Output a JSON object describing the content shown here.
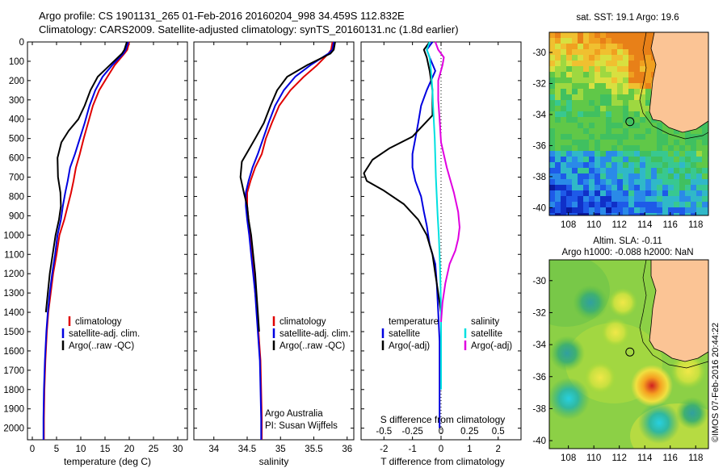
{
  "header": {
    "title_line1": "Argo profile: CS 1901131_265 01-Feb-2016 20160204_998 34.459S 112.832E",
    "title_line2": "Climatology: CARS2009. Satellite-adjusted climatology: synTS_20160131.nc (1.8d earlier)"
  },
  "depth_axis": {
    "ticks": [
      0,
      100,
      200,
      300,
      400,
      500,
      600,
      700,
      800,
      900,
      1000,
      1100,
      1200,
      1300,
      1400,
      1500,
      1600,
      1700,
      1800,
      1900,
      2000
    ],
    "range": [
      0,
      2060
    ]
  },
  "colors": {
    "climatology": "#e00000",
    "satellite": "#0000e0",
    "argo": "#000000",
    "salinity_satellite": "#00e0e0",
    "salinity_argo": "#e000e0",
    "land": "#fbc495"
  },
  "chart_data": [
    {
      "type": "line",
      "name": "temperature-panel",
      "xlabel": "temperature (deg C)",
      "xlim": [
        -1,
        32
      ],
      "xticks": [
        0,
        5,
        10,
        15,
        20,
        25,
        30
      ],
      "legend": [
        "climatology",
        "satellite-adj. clim.",
        "Argo(..raw -QC)"
      ],
      "legend_position": "lower-middle",
      "series": [
        {
          "name": "climatology",
          "color": "#e00000",
          "x": [
            20.0,
            19.6,
            19.0,
            17.0,
            15.5,
            13.8,
            12.5,
            11.5,
            10.6,
            9.8,
            9.0,
            8.5,
            8.0,
            7.3,
            6.6,
            5.6,
            5.0,
            4.3,
            3.8,
            3.3,
            3.0,
            2.7,
            2.5,
            2.4,
            2.4
          ],
          "y": [
            0,
            40,
            60,
            120,
            180,
            250,
            330,
            420,
            500,
            580,
            650,
            720,
            780,
            850,
            920,
            1000,
            1100,
            1200,
            1300,
            1400,
            1500,
            1650,
            1800,
            1950,
            2060
          ]
        },
        {
          "name": "satellite-adj. clim.",
          "color": "#0000e0",
          "x": [
            19.8,
            19.3,
            18.8,
            16.5,
            14.5,
            13.0,
            11.8,
            10.8,
            9.8,
            8.8,
            7.8,
            7.3,
            6.8,
            6.3,
            5.9,
            5.2,
            4.7,
            4.1,
            3.6,
            3.2,
            2.9,
            2.6,
            2.4,
            2.3,
            2.3
          ],
          "y": [
            0,
            40,
            60,
            120,
            180,
            250,
            330,
            420,
            500,
            580,
            650,
            720,
            780,
            850,
            920,
            1000,
            1100,
            1200,
            1300,
            1400,
            1500,
            1650,
            1800,
            1950,
            2060
          ]
        },
        {
          "name": "Argo(..raw -QC)",
          "color": "#000000",
          "x": [
            19.5,
            19.0,
            18.5,
            16.0,
            13.5,
            12.0,
            10.8,
            9.5,
            7.5,
            6.0,
            5.2,
            5.3,
            5.8,
            5.9,
            5.5,
            4.8,
            4.2,
            3.6,
            3.2,
            2.8
          ],
          "y": [
            0,
            40,
            60,
            120,
            180,
            250,
            330,
            400,
            460,
            520,
            600,
            700,
            780,
            850,
            920,
            1000,
            1100,
            1200,
            1300,
            1400
          ]
        }
      ]
    },
    {
      "type": "line",
      "name": "salinity-panel",
      "xlabel": "salinity",
      "xlim": [
        33.7,
        36.1
      ],
      "xticks": [
        34,
        34.5,
        35,
        35.5,
        36
      ],
      "legend": [
        "climatology",
        "satellite-adj. clim.",
        "Argo(..raw -QC)"
      ],
      "legend_position": "lower-middle",
      "annotation": [
        "Argo Australia",
        "PI: Susan Wijffels"
      ],
      "series": [
        {
          "name": "climatology",
          "color": "#e00000",
          "x": [
            35.78,
            35.76,
            35.72,
            35.55,
            35.35,
            35.15,
            34.98,
            34.87,
            34.78,
            34.72,
            34.62,
            34.55,
            34.5,
            34.5,
            34.52,
            34.55,
            34.58,
            34.6,
            34.62,
            34.65,
            34.67,
            34.7,
            34.71,
            34.72,
            34.72
          ],
          "y": [
            0,
            40,
            60,
            120,
            180,
            250,
            330,
            420,
            500,
            580,
            650,
            720,
            780,
            850,
            920,
            1000,
            1100,
            1200,
            1300,
            1400,
            1500,
            1650,
            1800,
            1950,
            2060
          ]
        },
        {
          "name": "satellite-adj. clim.",
          "color": "#0000e0",
          "x": [
            35.8,
            35.78,
            35.72,
            35.45,
            35.22,
            35.05,
            34.92,
            34.82,
            34.74,
            34.66,
            34.58,
            34.52,
            34.48,
            34.48,
            34.5,
            34.53,
            34.56,
            34.59,
            34.62,
            34.64,
            34.66,
            34.69,
            34.7,
            34.71,
            34.71
          ],
          "y": [
            0,
            40,
            60,
            120,
            180,
            250,
            330,
            420,
            500,
            580,
            650,
            720,
            780,
            850,
            920,
            1000,
            1100,
            1200,
            1300,
            1400,
            1500,
            1650,
            1800,
            1950,
            2060
          ]
        },
        {
          "name": "Argo(..raw -QC)",
          "color": "#000000",
          "x": [
            35.82,
            35.8,
            35.75,
            35.4,
            35.1,
            34.95,
            34.85,
            34.75,
            34.62,
            34.52,
            34.42,
            34.4,
            34.45,
            34.5,
            34.52,
            34.56,
            34.59,
            34.62,
            34.64,
            34.66,
            34.68
          ],
          "y": [
            0,
            40,
            60,
            120,
            180,
            250,
            330,
            420,
            500,
            560,
            620,
            700,
            780,
            850,
            920,
            1000,
            1100,
            1200,
            1300,
            1400,
            1500
          ]
        }
      ]
    },
    {
      "type": "line",
      "name": "difference-panel",
      "xlabel": "T difference from climatology",
      "xlabel_top": "S difference from climatology",
      "xlim": [
        -2.8,
        2.8
      ],
      "xticks_T": [
        -2,
        -1,
        0,
        1,
        2
      ],
      "xticks_S": [
        -0.5,
        -0.25,
        0,
        0.25,
        0.5
      ],
      "xtick_labels_S": [
        "-0.5",
        "-0.25",
        "0",
        "0.25",
        "0.5"
      ],
      "legend_temperature_header": "temperature",
      "legend_salinity_header": "salinity",
      "legend": [
        "satellite",
        "Argo(-adj)",
        "satellite",
        "Argo(-adj)"
      ],
      "series": [
        {
          "name": "satellite",
          "color": "#0000e0",
          "x": [
            -0.3,
            -0.5,
            -0.4,
            -0.2,
            -0.5,
            -0.7,
            -0.8,
            -0.9,
            -1.0,
            -1.0,
            -0.9,
            -0.7,
            -0.6,
            -0.5,
            -0.4,
            -0.2,
            -0.15,
            -0.1,
            -0.05,
            -0.05,
            -0.05,
            -0.05
          ],
          "y": [
            0,
            40,
            80,
            150,
            250,
            330,
            420,
            500,
            580,
            650,
            720,
            800,
            880,
            950,
            1050,
            1150,
            1250,
            1400,
            1550,
            1700,
            1850,
            2000
          ]
        },
        {
          "name": "Argo(-adj)",
          "color": "#000000",
          "x": [
            -0.4,
            -0.6,
            -0.5,
            -0.4,
            -0.3,
            -0.3,
            -1.0,
            -1.8,
            -2.4,
            -2.7,
            -2.6,
            -2.0,
            -1.3,
            -0.8,
            -0.5,
            -0.3,
            -0.2,
            -0.1,
            0.0
          ],
          "y": [
            0,
            40,
            80,
            150,
            250,
            380,
            490,
            550,
            610,
            680,
            720,
            770,
            840,
            920,
            1000,
            1100,
            1200,
            1300,
            1400
          ]
        },
        {
          "name": "satellite",
          "color": "#00e0e0",
          "x": [
            -0.4,
            -0.5,
            -0.4,
            -0.35,
            -0.3,
            -0.28,
            -0.25,
            -0.22,
            -0.2,
            -0.18,
            -0.15,
            -0.12,
            -0.08,
            -0.05,
            -0.02,
            0.0,
            0.0,
            0.0
          ],
          "y": [
            0,
            40,
            80,
            150,
            250,
            330,
            420,
            500,
            600,
            700,
            800,
            900,
            1000,
            1100,
            1250,
            1400,
            1600,
            1800
          ]
        },
        {
          "name": "Argo(-adj)",
          "color": "#e000e0",
          "x": [
            -0.2,
            -0.1,
            0.1,
            0.05,
            -0.1,
            -0.1,
            -0.05,
            0.0,
            0.2,
            0.45,
            0.6,
            0.65,
            0.6,
            0.5,
            0.3,
            0.15,
            0.05,
            0.0
          ],
          "y": [
            0,
            40,
            80,
            120,
            200,
            300,
            400,
            520,
            650,
            780,
            880,
            960,
            1020,
            1080,
            1150,
            1250,
            1350,
            1450
          ]
        }
      ]
    },
    {
      "type": "heatmap",
      "name": "sst-map",
      "title": "sat. SST: 19.1  Argo: 19.6",
      "xlim": [
        106.5,
        119.0
      ],
      "ylim": [
        -40.5,
        -28.7
      ],
      "xticks": [
        108,
        110,
        112,
        114,
        116,
        118
      ],
      "yticks": [
        -30,
        -32,
        -34,
        -36,
        -38,
        -40
      ],
      "marker": {
        "lon": 112.832,
        "lat": -34.459
      }
    },
    {
      "type": "heatmap",
      "name": "sla-map",
      "title_line1": "Altim. SLA: -0.11",
      "title_line2": "Argo h1000: -0.088 h2000: NaN",
      "xlim": [
        106.5,
        119.0
      ],
      "ylim": [
        -40.5,
        -28.7
      ],
      "xticks": [
        108,
        110,
        112,
        114,
        116,
        118
      ],
      "yticks": [
        -30,
        -32,
        -34,
        -36,
        -38,
        -40
      ],
      "marker": {
        "lon": 112.832,
        "lat": -34.459
      }
    }
  ],
  "stamp": "©IMOS 07-Feb-2016 20:44:22"
}
